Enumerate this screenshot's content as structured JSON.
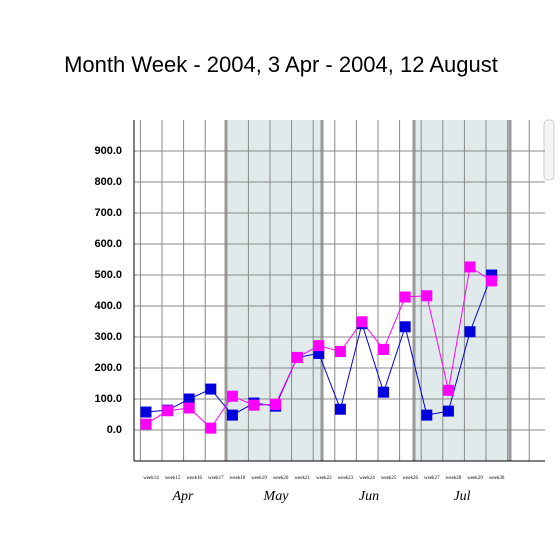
{
  "chart_data": {
    "type": "line",
    "title": "Month Week - 2004, 3 Apr - 2004, 12 August",
    "categories": [
      "week14",
      "week15",
      "week16",
      "week17",
      "week18",
      "week19",
      "week20",
      "week21",
      "week22",
      "week23",
      "week24",
      "week25",
      "week26",
      "week27",
      "week28",
      "week29",
      "week30"
    ],
    "months": [
      "Apr",
      "May",
      "Jun",
      "Jul"
    ],
    "series": [
      {
        "color": "#0000dd",
        "values": [
          58,
          64,
          100,
          132,
          48,
          87,
          77,
          234,
          247,
          67,
          343,
          122,
          333,
          48,
          61,
          317,
          500
        ]
      },
      {
        "color": "#ff00ff",
        "values": [
          19,
          62,
          71,
          6,
          109,
          80,
          83,
          234,
          272,
          253,
          349,
          260,
          429,
          433,
          128,
          526,
          481
        ]
      }
    ],
    "ylim": [
      -100,
      1000
    ],
    "yticks": [
      {
        "value": 0,
        "label": "0.0"
      },
      {
        "value": 100,
        "label": "100.0"
      },
      {
        "value": 200,
        "label": "200.0"
      },
      {
        "value": 300,
        "label": "300.0"
      },
      {
        "value": 400,
        "label": "400.0"
      },
      {
        "value": 500,
        "label": "500.0"
      },
      {
        "value": 600,
        "label": "600.0"
      },
      {
        "value": 700,
        "label": "700.0"
      },
      {
        "value": 800,
        "label": "800.0"
      },
      {
        "value": 900,
        "label": "900.0"
      }
    ],
    "grid": true
  }
}
